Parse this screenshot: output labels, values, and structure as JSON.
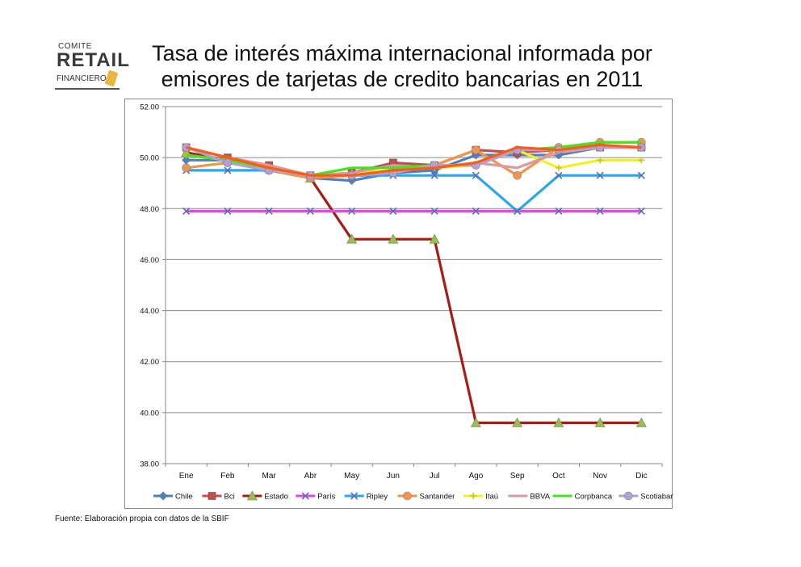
{
  "logo": {
    "line1": "COMITE",
    "line2": "RETAIL",
    "line3": "FINANCIERO"
  },
  "source": "Fuente: Elaboración propia con datos de la SBIF",
  "chart_data": {
    "type": "line",
    "title": "Tasa de interés máxima internacional informada por emisores de tarjetas de credito bancarias en 2011",
    "xlabel": "",
    "ylabel": "",
    "ylim": [
      38,
      52
    ],
    "yticks": [
      "38.00",
      "40.00",
      "42.00",
      "44.00",
      "46.00",
      "48.00",
      "50.00",
      "52.00"
    ],
    "grid": true,
    "legend": "bottom",
    "categories": [
      "Ene",
      "Feb",
      "Mar",
      "Abr",
      "May",
      "Jun",
      "Jul",
      "Ago",
      "Sep",
      "Oct",
      "Nov",
      "Dic"
    ],
    "series": [
      {
        "name": "Chile",
        "color": "#4f81bd",
        "marker": "diamond",
        "values": [
          49.9,
          49.9,
          49.5,
          49.2,
          49.1,
          49.4,
          49.5,
          50.1,
          50.1,
          50.1,
          50.4,
          50.4
        ]
      },
      {
        "name": "Bci",
        "color": "#c0504d",
        "marker": "square",
        "values": [
          50.4,
          50.0,
          49.7,
          49.3,
          49.4,
          49.8,
          49.7,
          50.3,
          50.2,
          50.3,
          50.4,
          50.4
        ]
      },
      {
        "name": "Estado",
        "color": "#a51d16",
        "marker": "triangle",
        "values": [
          50.2,
          49.9,
          49.6,
          49.2,
          46.8,
          46.8,
          46.8,
          39.6,
          39.6,
          39.6,
          39.6,
          39.6
        ]
      },
      {
        "name": "París",
        "color": "#e646e6",
        "marker": "x",
        "values": [
          47.9,
          47.9,
          47.9,
          47.9,
          47.9,
          47.9,
          47.9,
          47.9,
          47.9,
          47.9,
          47.9,
          47.9
        ]
      },
      {
        "name": "Ripley",
        "color": "#2aa6ef",
        "marker": "x",
        "values": [
          49.5,
          49.5,
          49.5,
          49.3,
          49.3,
          49.3,
          49.3,
          49.3,
          47.9,
          49.3,
          49.3,
          49.3
        ]
      },
      {
        "name": "Santander",
        "color": "#f0964a",
        "marker": "circle",
        "values": [
          49.6,
          49.8,
          49.5,
          49.2,
          49.3,
          49.5,
          49.7,
          50.3,
          49.3,
          50.4,
          50.6,
          50.6
        ]
      },
      {
        "name": "Itaú",
        "color": "#f2f21a",
        "marker": "plus",
        "values": [
          50.1,
          49.9,
          49.6,
          49.3,
          49.4,
          49.5,
          49.6,
          49.7,
          50.3,
          49.6,
          49.9,
          49.9
        ]
      },
      {
        "name": "BBVA",
        "color": "#d99aa0",
        "marker": "none",
        "values": [
          50.4,
          50.0,
          49.7,
          49.3,
          49.4,
          49.7,
          49.6,
          49.8,
          49.6,
          50.2,
          50.4,
          50.4
        ]
      },
      {
        "name": "Corpbanca",
        "color": "#44e21f",
        "marker": "none",
        "values": [
          50.1,
          49.9,
          49.6,
          49.3,
          49.6,
          49.6,
          49.7,
          49.7,
          50.3,
          50.4,
          50.6,
          50.6
        ]
      },
      {
        "name": "Scotiabank",
        "color": "#b2a2d2",
        "marker": "circle",
        "values": [
          50.4,
          49.8,
          49.5,
          49.3,
          49.3,
          49.4,
          49.7,
          49.7,
          50.3,
          50.3,
          50.4,
          50.4
        ]
      },
      {
        "name": "",
        "color": "#ff5a14",
        "marker": "none",
        "values": [
          50.4,
          50.0,
          49.6,
          49.3,
          49.3,
          49.5,
          49.6,
          49.8,
          50.4,
          50.3,
          50.5,
          50.4
        ]
      }
    ]
  }
}
